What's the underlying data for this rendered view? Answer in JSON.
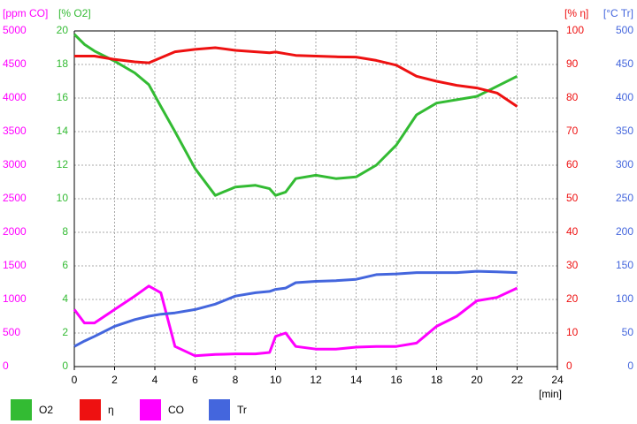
{
  "chart_data": {
    "type": "line",
    "x_label": "[min]",
    "x": [
      0,
      0.5,
      1,
      2,
      3,
      3.7,
      4.3,
      5,
      6,
      7,
      8,
      9,
      9.7,
      10,
      10.5,
      11,
      12,
      13,
      14,
      15,
      16,
      17,
      18,
      19,
      20,
      21,
      22
    ],
    "xlim": [
      0,
      24
    ],
    "xticks": [
      0,
      2,
      4,
      6,
      8,
      10,
      12,
      14,
      16,
      18,
      20,
      22,
      24
    ],
    "grid": true,
    "y_axes": [
      {
        "label": "[ppm CO]",
        "color": "#ff00ff",
        "ylim": [
          0,
          5000
        ],
        "yticks": [
          0,
          500,
          1000,
          1500,
          2000,
          2500,
          3000,
          3500,
          4000,
          4500,
          5000
        ]
      },
      {
        "label": "[% O2]",
        "color": "#33bb33",
        "ylim": [
          0,
          20
        ],
        "yticks": [
          0,
          2,
          4,
          6,
          8,
          10,
          12,
          14,
          16,
          18,
          20
        ]
      },
      {
        "label": "[% η]",
        "color": "#ee1111",
        "ylim": [
          0,
          100
        ],
        "yticks": [
          0,
          10,
          20,
          30,
          40,
          50,
          60,
          70,
          80,
          90,
          100
        ]
      },
      {
        "label": "[°C Tr]",
        "color": "#4466dd",
        "ylim": [
          0,
          500
        ],
        "yticks": [
          0,
          50,
          100,
          150,
          200,
          250,
          300,
          350,
          400,
          450,
          500
        ]
      }
    ],
    "series": [
      {
        "name": "O2",
        "color": "#33bb33",
        "axis": 1,
        "values": [
          19.8,
          19.2,
          18.8,
          18.2,
          17.5,
          16.8,
          15.5,
          14,
          11.8,
          10.2,
          10.7,
          10.8,
          10.6,
          10.2,
          10.4,
          11.2,
          11.4,
          11.2,
          11.3,
          12,
          13.2,
          15,
          15.7,
          15.9,
          16.1,
          16.7,
          17.3
        ]
      },
      {
        "name": "η",
        "color": "#ee1111",
        "axis": 2,
        "values": [
          92.5,
          92.5,
          92.5,
          91.5,
          90.8,
          90.5,
          92,
          93.8,
          94.5,
          95,
          94.2,
          93.8,
          93.5,
          93.7,
          93.2,
          92.7,
          92.5,
          92.3,
          92.2,
          91.2,
          89.8,
          86.5,
          85,
          83.8,
          83,
          81.5,
          77.5
        ]
      },
      {
        "name": "CO",
        "color": "#ff00ff",
        "axis": 0,
        "values": [
          850,
          650,
          650,
          850,
          1050,
          1200,
          1100,
          300,
          160,
          180,
          190,
          190,
          210,
          450,
          500,
          300,
          260,
          260,
          290,
          300,
          300,
          350,
          600,
          750,
          980,
          1030,
          1170
        ]
      },
      {
        "name": "Tr",
        "color": "#4466dd",
        "axis": 3,
        "values": [
          30,
          38,
          45,
          60,
          70,
          75,
          78,
          80,
          85,
          93,
          105,
          110,
          112,
          115,
          117,
          125,
          127,
          128,
          130,
          137,
          138,
          140,
          140,
          140,
          142,
          141,
          140
        ]
      }
    ]
  }
}
